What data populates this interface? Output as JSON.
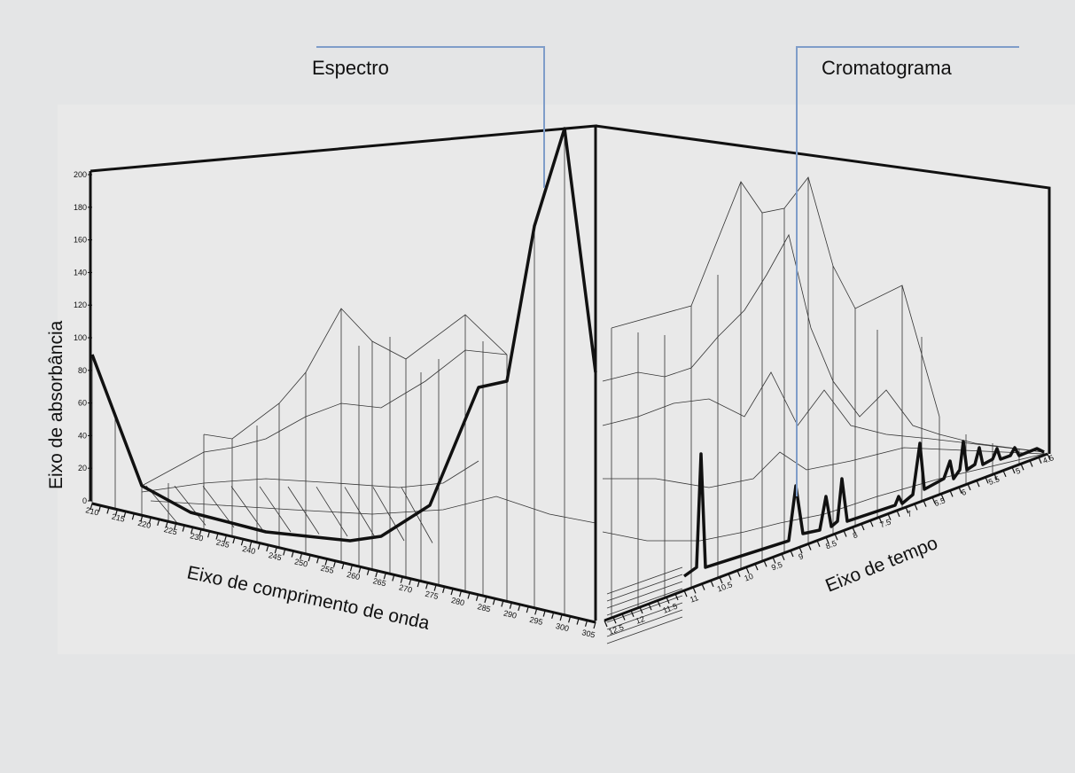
{
  "labels": {
    "spectrum_callout": "Espectro",
    "chromatogram_callout": "Cromatograma"
  },
  "axes": {
    "absorbance": {
      "label": "Eixo de absorbância",
      "ticks": [
        "0",
        "20",
        "40",
        "60",
        "80",
        "100",
        "120",
        "140",
        "160",
        "180",
        "200"
      ]
    },
    "wavelength": {
      "label": "Eixo de comprimento de onda",
      "ticks": [
        "210",
        "215",
        "220",
        "225",
        "230",
        "235",
        "240",
        "245",
        "250",
        "255",
        "260",
        "265",
        "270",
        "275",
        "280",
        "285",
        "290",
        "295",
        "300",
        "305"
      ]
    },
    "time": {
      "label": "Eixo de tempo",
      "ticks": [
        "12.5",
        "12",
        "11.5",
        "11",
        "10.5",
        "10",
        "9.5",
        "9",
        "8.5",
        "8",
        "7.5",
        "7",
        "6.5",
        "6",
        "5.5",
        "5",
        "4.5"
      ]
    }
  },
  "colors": {
    "background": "#e4e5e6",
    "plot_background": "#e9e9e9",
    "callout_line": "#7f9dc9",
    "frame": "#111111",
    "mesh": "#333333"
  }
}
